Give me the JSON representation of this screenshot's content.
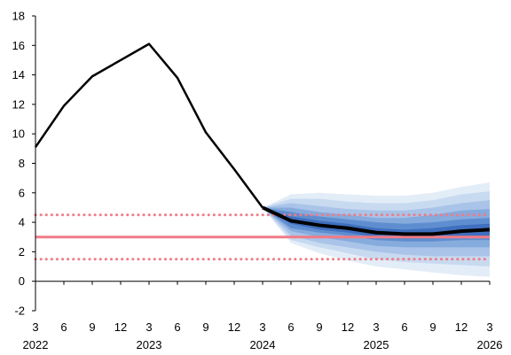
{
  "chart_data": {
    "type": "line",
    "title": "",
    "xlabel": "",
    "ylabel": "",
    "ylim": [
      -2,
      18
    ],
    "yticks": [
      -2,
      0,
      2,
      4,
      6,
      8,
      10,
      12,
      14,
      16,
      18
    ],
    "x_tick_labels": [
      "3",
      "6",
      "9",
      "12",
      "3",
      "6",
      "9",
      "12",
      "3",
      "6",
      "9",
      "12",
      "3",
      "6",
      "9",
      "12",
      "3"
    ],
    "x_year_labels": [
      {
        "label": "2022",
        "tick_index": 0
      },
      {
        "label": "2023",
        "tick_index": 4
      },
      {
        "label": "2024",
        "tick_index": 8
      },
      {
        "label": "2025",
        "tick_index": 12
      },
      {
        "label": "2026",
        "tick_index": 16
      }
    ],
    "grid": false,
    "legend": "none",
    "series": [
      {
        "role": "history",
        "color": "#000000",
        "points": [
          {
            "x": 0,
            "y": 9.1
          },
          {
            "x": 1,
            "y": 11.9
          },
          {
            "x": 2,
            "y": 13.9
          },
          {
            "x": 3,
            "y": 15.0
          },
          {
            "x": 4,
            "y": 16.1
          },
          {
            "x": 5,
            "y": 13.8
          },
          {
            "x": 6,
            "y": 10.1
          },
          {
            "x": 7,
            "y": 7.6
          },
          {
            "x": 8,
            "y": 5.0
          }
        ]
      },
      {
        "role": "projection-median",
        "color": "#000000",
        "points": [
          {
            "x": 8,
            "y": 5.0
          },
          {
            "x": 9,
            "y": 4.1
          },
          {
            "x": 10,
            "y": 3.8
          },
          {
            "x": 11,
            "y": 3.6
          },
          {
            "x": 12,
            "y": 3.3
          },
          {
            "x": 13,
            "y": 3.2
          },
          {
            "x": 14,
            "y": 3.2
          },
          {
            "x": 15,
            "y": 3.4
          },
          {
            "x": 16,
            "y": 3.5
          }
        ]
      }
    ],
    "fan_chart": {
      "x": [
        8,
        9,
        10,
        11,
        12,
        13,
        14,
        15,
        16
      ],
      "bands": [
        {
          "color": "#e3edf8",
          "upper": [
            5.0,
            5.9,
            6.0,
            5.9,
            5.8,
            5.8,
            6.0,
            6.4,
            6.7
          ],
          "lower": [
            5.0,
            2.6,
            1.9,
            1.4,
            1.0,
            0.8,
            0.6,
            0.4,
            0.3
          ]
        },
        {
          "color": "#c8daf0",
          "upper": [
            5.0,
            5.6,
            5.6,
            5.4,
            5.3,
            5.3,
            5.5,
            5.9,
            6.1
          ],
          "lower": [
            5.0,
            2.8,
            2.3,
            1.9,
            1.5,
            1.3,
            1.2,
            1.1,
            1.0
          ]
        },
        {
          "color": "#a9c4e8",
          "upper": [
            5.0,
            5.3,
            5.1,
            4.9,
            4.8,
            4.8,
            5.0,
            5.3,
            5.5
          ],
          "lower": [
            5.0,
            3.1,
            2.6,
            2.3,
            2.0,
            1.8,
            1.7,
            1.7,
            1.7
          ]
        },
        {
          "color": "#86abdd",
          "upper": [
            5.0,
            5.0,
            4.7,
            4.5,
            4.3,
            4.3,
            4.5,
            4.8,
            4.9
          ],
          "lower": [
            5.0,
            3.4,
            3.0,
            2.7,
            2.4,
            2.3,
            2.3,
            2.3,
            2.3
          ]
        },
        {
          "color": "#5f8ed0",
          "upper": [
            5.0,
            4.7,
            4.4,
            4.2,
            4.0,
            3.9,
            4.0,
            4.2,
            4.3
          ],
          "lower": [
            5.0,
            3.6,
            3.3,
            3.1,
            2.8,
            2.7,
            2.7,
            2.8,
            2.8
          ]
        },
        {
          "color": "#3f6fbe",
          "upper": [
            5.0,
            4.4,
            4.1,
            3.9,
            3.6,
            3.5,
            3.6,
            3.8,
            3.9
          ],
          "lower": [
            5.0,
            3.9,
            3.5,
            3.3,
            3.0,
            2.9,
            2.9,
            3.0,
            3.1
          ]
        }
      ]
    },
    "reference_lines": [
      {
        "name": "target",
        "y": 3.0,
        "style": "solid",
        "color": "#f07b86"
      },
      {
        "name": "upper-bound",
        "y": 4.5,
        "style": "dotted",
        "color": "#f07b86"
      },
      {
        "name": "lower-bound",
        "y": 1.5,
        "style": "dotted",
        "color": "#f07b86"
      }
    ]
  }
}
